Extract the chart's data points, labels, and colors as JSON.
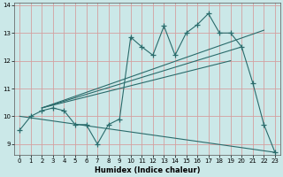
{
  "xlabel": "Humidex (Indice chaleur)",
  "background_color": "#cbe8e8",
  "grid_color": "#d4a0a0",
  "line_color": "#2a6b6b",
  "x_values": [
    0,
    1,
    2,
    3,
    4,
    5,
    6,
    7,
    8,
    9,
    10,
    11,
    12,
    13,
    14,
    15,
    16,
    17,
    18,
    19,
    20,
    21,
    22,
    23
  ],
  "main_line": [
    9.5,
    10.0,
    10.2,
    10.3,
    10.2,
    9.7,
    9.7,
    9.0,
    9.7,
    9.9,
    12.85,
    12.5,
    12.2,
    13.25,
    12.2,
    13.0,
    13.3,
    13.7,
    13.0,
    13.0,
    12.5,
    11.2,
    9.7,
    8.7
  ],
  "trend1_x": [
    0,
    23
  ],
  "trend1_y": [
    10.0,
    8.7
  ],
  "trend2_x": [
    2,
    19
  ],
  "trend2_y": [
    10.3,
    12.0
  ],
  "trend3_x": [
    2,
    20
  ],
  "trend3_y": [
    10.3,
    12.5
  ],
  "trend4_x": [
    2,
    22
  ],
  "trend4_y": [
    10.3,
    13.1
  ],
  "ylim": [
    8.6,
    14.1
  ],
  "xlim": [
    -0.5,
    23.5
  ],
  "yticks": [
    9,
    10,
    11,
    12,
    13,
    14
  ],
  "xticks": [
    0,
    1,
    2,
    3,
    4,
    5,
    6,
    7,
    8,
    9,
    10,
    11,
    12,
    13,
    14,
    15,
    16,
    17,
    18,
    19,
    20,
    21,
    22,
    23
  ]
}
